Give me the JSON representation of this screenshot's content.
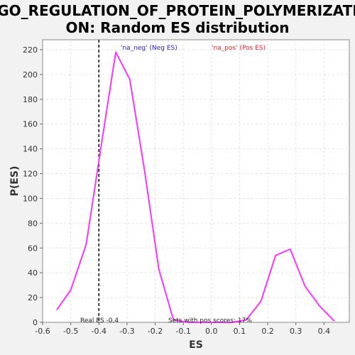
{
  "chart_data": {
    "type": "line",
    "title_line1": "GO_REGULATION_OF_PROTEIN_POLYMERIZATI",
    "title_line2": "ON: Random ES distribution",
    "xlabel": "ES",
    "ylabel": "P(ES)",
    "xlim": [
      -0.6,
      0.49
    ],
    "ylim": [
      0,
      228
    ],
    "xticks": [
      "-0.6",
      "-0.5",
      "-0.4",
      "-0.3",
      "-0.2",
      "-0.1",
      "0.0",
      "0.1",
      "0.2",
      "0.3",
      "0.4"
    ],
    "yticks": [
      "0",
      "20",
      "40",
      "60",
      "80",
      "100",
      "120",
      "140",
      "160",
      "180",
      "200",
      "220"
    ],
    "grid": true,
    "series": [
      {
        "color": "#ff33ff",
        "x": [
          -0.55,
          -0.5,
          -0.445,
          -0.39,
          -0.34,
          -0.29,
          -0.238,
          -0.187,
          -0.135,
          -0.083,
          -0.03,
          0.02,
          0.073,
          0.124,
          0.176,
          0.228,
          0.28,
          0.333,
          0.385,
          0.437
        ],
        "y": [
          10,
          26,
          63,
          145,
          218,
          196,
          123,
          43,
          2,
          0,
          0,
          0,
          0,
          2,
          17,
          54,
          59,
          29,
          13,
          1
        ]
      }
    ],
    "real_es": -0.4,
    "legend": {
      "neg": {
        "label": "'na_neg' (Neg ES)",
        "color": "#2222cc"
      },
      "pos": {
        "label": "'na_pos' (Pos ES)",
        "color": "#ee2222"
      }
    },
    "annotations": {
      "real_es": "Real ES -0.4",
      "pos_scores": "Sets with pos scores: 17%"
    }
  }
}
